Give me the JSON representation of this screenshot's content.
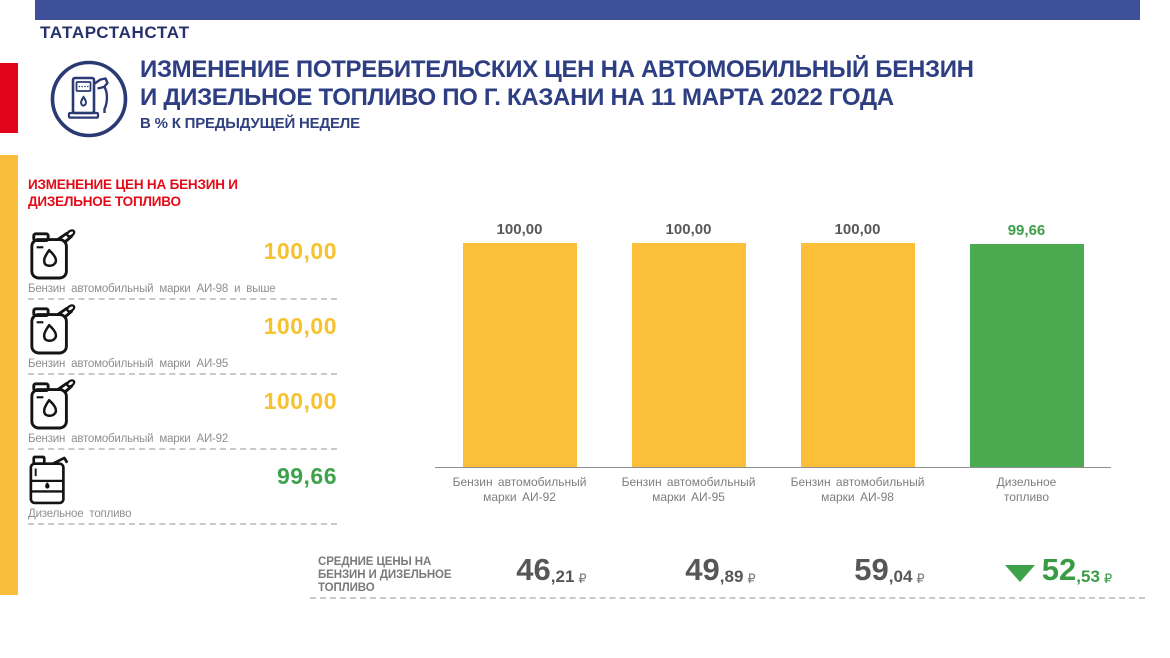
{
  "brand": {
    "name": "ТАТАРСТАНСТАТ"
  },
  "header": {
    "title_line1": "ИЗМЕНЕНИЕ ПОТРЕБИТЕЛЬСКИХ ЦЕН НА АВТОМОБИЛЬНЫЙ БЕНЗИН",
    "title_line2": "И ДИЗЕЛЬНОЕ ТОПЛИВО ПО Г. КАЗАНИ НА 11 МАРТА 2022 ГОДА",
    "subtitle": "В % К ПРЕДЫДУЩЕЙ НЕДЕЛЕ",
    "logo_icon": "fuel-pump-icon"
  },
  "sidebar": {
    "heading_line1": "ИЗМЕНЕНИЕ ЦЕН НА БЕНЗИН И",
    "heading_line2": "ДИЗЕЛЬНОЕ  ТОПЛИВО",
    "items": [
      {
        "icon": "petrol-canister-icon",
        "label": "Бензин автомобильный марки АИ-98 и выше",
        "value": "100,00",
        "value_color": "#f6c22e"
      },
      {
        "icon": "petrol-canister-icon",
        "label": "Бензин автомобильный марки АИ-95",
        "value": "100,00",
        "value_color": "#f6c22e"
      },
      {
        "icon": "petrol-canister-icon",
        "label": "Бензин автомобильный марки АИ-92",
        "value": "100,00",
        "value_color": "#f6c22e"
      },
      {
        "icon": "diesel-canister-icon",
        "label": "Дизельное топливо",
        "value": "99,66",
        "value_color": "#3ea24b"
      }
    ]
  },
  "chart_data": {
    "type": "bar",
    "title": "",
    "xlabel": "",
    "ylabel": "",
    "ylim": [
      0,
      100
    ],
    "grid": false,
    "legend": "none",
    "categories": [
      "Бензин автомобильный марки АИ-92",
      "Бензин автомобильный марки АИ-95",
      "Бензин автомобильный марки АИ-98",
      "Дизельное топливо"
    ],
    "category_lines": [
      [
        "Бензин автомобильный",
        "марки АИ-92"
      ],
      [
        "Бензин автомобильный",
        "марки АИ-95"
      ],
      [
        "Бензин автомобильный",
        "марки АИ-98"
      ],
      [
        "Дизельное",
        "топливо"
      ]
    ],
    "values": [
      100.0,
      100.0,
      100.0,
      99.66
    ],
    "value_labels": [
      "100,00",
      "100,00",
      "100,00",
      "99,66"
    ],
    "value_label_colors": [
      "#58585a",
      "#58585a",
      "#58585a",
      "#3e9e49"
    ],
    "bar_colors": [
      "#fcbf39",
      "#fcbf39",
      "#fcbf39",
      "#4cab50"
    ]
  },
  "prices": {
    "heading_line1": "СРЕДНИЕ ЦЕНЫ НА",
    "heading_line2": "БЕНЗИН И ДИЗЕЛЬНОЕ",
    "heading_line3": "ТОПЛИВО",
    "items": [
      {
        "int": "46",
        "dec": ",21",
        "currency": "₽",
        "trend": "none"
      },
      {
        "int": "49",
        "dec": ",89",
        "currency": "₽",
        "trend": "none"
      },
      {
        "int": "59",
        "dec": ",04",
        "currency": "₽",
        "trend": "none"
      },
      {
        "int": "52",
        "dec": ",53",
        "currency": "₽",
        "trend": "down",
        "trend_color": "#3fa24a"
      }
    ]
  },
  "colors": {
    "topbar": "#3e509a",
    "navy_text": "#2e3e82",
    "red_accent": "#e2041a",
    "yellow_accent": "#fbbe3c",
    "bar_yellow": "#fcbf39",
    "bar_green": "#4cab50",
    "gray_text": "#7d7d7d"
  }
}
